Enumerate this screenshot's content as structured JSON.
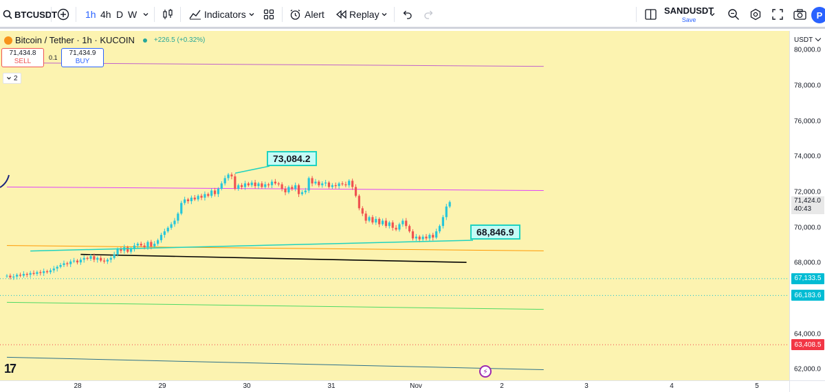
{
  "toolbar": {
    "symbol": "BTCUSDT",
    "timeframes": [
      "1h",
      "4h",
      "D",
      "W"
    ],
    "active_timeframe": "1h",
    "indicators_label": "Indicators",
    "alert_label": "Alert",
    "replay_label": "Replay",
    "layout_symbol": "SANDUSDT",
    "save_label": "Save",
    "avatar_letter": "P"
  },
  "legend": {
    "title": "Bitcoin / Tether · 1h · KUCOIN",
    "change": "+226.5 (+0.32%)",
    "sell_price": "71,434.8",
    "sell_label": "SELL",
    "spread": "0.1",
    "buy_price": "71,434.9",
    "buy_label": "BUY",
    "collapsed_count": "2"
  },
  "annotations": {
    "high_label": "73,084.2",
    "low_label": "68,846.9"
  },
  "price_axis": {
    "currency": "USDT",
    "ticks": [
      "80,000.0",
      "78,000.0",
      "76,000.0",
      "74,000.0",
      "72,000.0",
      "70,000.0",
      "68,000.0",
      "64,000.0",
      "62,000.0"
    ],
    "last_price": "71,424.0",
    "countdown": "40:43",
    "levels": [
      {
        "label": "67,133.5",
        "color": "#00bcd4"
      },
      {
        "label": "66,183.6",
        "color": "#00bcd4"
      },
      {
        "label": "63,408.5",
        "color": "#f23645"
      }
    ]
  },
  "time_axis": {
    "labels": [
      "28",
      "29",
      "30",
      "31",
      "Nov",
      "2",
      "3",
      "4",
      "5"
    ]
  },
  "chart_data": {
    "type": "candlestick",
    "symbol": "BTCUSDT",
    "interval": "1h",
    "ylim": [
      61400,
      81100
    ],
    "up_color": "#26c6da",
    "down_color": "#ef5350",
    "closes": [
      67300,
      67200,
      67250,
      67350,
      67300,
      67400,
      67350,
      67450,
      67400,
      67500,
      67450,
      67550,
      67500,
      67600,
      67700,
      67800,
      67900,
      68000,
      67950,
      68100,
      68150,
      68050,
      68200,
      68300,
      68250,
      68400,
      68200,
      68300,
      68150,
      68100,
      68200,
      68300,
      68500,
      68800,
      68700,
      68900,
      68650,
      68800,
      69000,
      69100,
      69000,
      68900,
      69200,
      68950,
      69100,
      69300,
      69600,
      69800,
      70000,
      70200,
      70400,
      70800,
      71400,
      71600,
      71500,
      71700,
      71600,
      71800,
      71700,
      71900,
      71800,
      72100,
      71900,
      72200,
      72500,
      72800,
      73000,
      72900,
      72200,
      72400,
      72300,
      72500,
      72400,
      72550,
      72350,
      72500,
      72300,
      72450,
      72400,
      72600,
      72500,
      72450,
      72200,
      72000,
      72300,
      72200,
      72400,
      71900,
      72000,
      72100,
      72800,
      72500,
      72600,
      72400,
      72500,
      72550,
      72300,
      72400,
      72350,
      72500,
      72450,
      72400,
      72650,
      72300,
      71800,
      71100,
      70800,
      70400,
      70600,
      70300,
      70500,
      70200,
      70400,
      70100,
      70300,
      70000,
      69900,
      70200,
      70400,
      70100,
      69800,
      69400,
      69500,
      69350,
      69500,
      69400,
      69600,
      69450,
      69800,
      70100,
      70600,
      71200,
      71450
    ],
    "trend_lines": [
      {
        "from": {
          "i": 0,
          "y": 79300
        },
        "to": {
          "i": 160,
          "y": 79100
        },
        "color": "#c061cb"
      },
      {
        "from": {
          "i": 0,
          "y": 72300
        },
        "to": {
          "i": 160,
          "y": 72100
        },
        "color": "#e040fb"
      },
      {
        "from": {
          "i": 0,
          "y": 69000
        },
        "to": {
          "i": 160,
          "y": 68700
        },
        "color": "#ff9800"
      },
      {
        "from": {
          "i": 22,
          "y": 68500
        },
        "to": {
          "i": 137,
          "y": 68050
        },
        "color": "#000000"
      },
      {
        "from": {
          "i": 0,
          "y": 65800
        },
        "to": {
          "i": 160,
          "y": 65400
        },
        "color": "#4cd964"
      },
      {
        "from": {
          "i": 0,
          "y": 62700
        },
        "to": {
          "i": 160,
          "y": 62000
        },
        "color": "#2a6f8a"
      }
    ],
    "horizontal_levels": [
      {
        "y": 67133.5,
        "color": "#00bcd4",
        "style": "dotted"
      },
      {
        "y": 66183.6,
        "color": "#00bcd4",
        "style": "dotted"
      },
      {
        "y": 63408.5,
        "color": "#f23645",
        "style": "dotted"
      }
    ]
  }
}
